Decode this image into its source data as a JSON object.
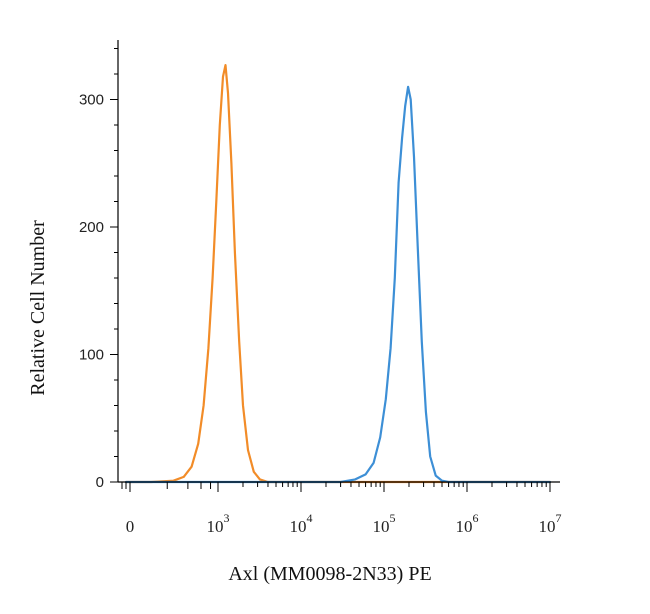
{
  "chart_data": {
    "type": "line",
    "xlabel": "Axl (MM0098-2N33) PE",
    "ylabel": "Relative Cell Number",
    "x_scale": "biexponential",
    "x_ticks": [
      {
        "value": 0,
        "label": "0",
        "exp": ""
      },
      {
        "value": 1000,
        "label": "10",
        "exp": "3"
      },
      {
        "value": 10000,
        "label": "10",
        "exp": "4"
      },
      {
        "value": 100000,
        "label": "10",
        "exp": "5"
      },
      {
        "value": 1000000,
        "label": "10",
        "exp": "6"
      },
      {
        "value": 10000000,
        "label": "10",
        "exp": "7"
      }
    ],
    "y_ticks": [
      0,
      100,
      200,
      300
    ],
    "ylim": [
      0,
      340
    ],
    "grid": false,
    "series": [
      {
        "color": "#f28c28",
        "points": [
          [
            -200,
            0
          ],
          [
            100,
            0
          ],
          [
            250,
            1
          ],
          [
            350,
            4
          ],
          [
            450,
            12
          ],
          [
            550,
            30
          ],
          [
            650,
            60
          ],
          [
            750,
            105
          ],
          [
            850,
            160
          ],
          [
            950,
            220
          ],
          [
            1050,
            280
          ],
          [
            1150,
            318
          ],
          [
            1230,
            327
          ],
          [
            1320,
            305
          ],
          [
            1450,
            250
          ],
          [
            1600,
            180
          ],
          [
            1800,
            110
          ],
          [
            2000,
            60
          ],
          [
            2300,
            25
          ],
          [
            2700,
            8
          ],
          [
            3200,
            2
          ],
          [
            4000,
            0
          ],
          [
            20000,
            0
          ],
          [
            100000,
            0
          ],
          [
            1000000,
            0
          ],
          [
            10000000,
            0
          ]
        ]
      },
      {
        "color": "#3d8fd6",
        "points": [
          [
            -200,
            0
          ],
          [
            1000,
            0
          ],
          [
            10000,
            0
          ],
          [
            30000,
            0
          ],
          [
            45000,
            2
          ],
          [
            60000,
            6
          ],
          [
            75000,
            15
          ],
          [
            90000,
            35
          ],
          [
            105000,
            65
          ],
          [
            120000,
            105
          ],
          [
            135000,
            160
          ],
          [
            150000,
            235
          ],
          [
            165000,
            270
          ],
          [
            180000,
            295
          ],
          [
            195000,
            310
          ],
          [
            210000,
            300
          ],
          [
            230000,
            255
          ],
          [
            255000,
            185
          ],
          [
            285000,
            110
          ],
          [
            320000,
            55
          ],
          [
            360000,
            20
          ],
          [
            420000,
            5
          ],
          [
            500000,
            1
          ],
          [
            600000,
            0
          ],
          [
            10000000,
            0
          ]
        ]
      }
    ]
  }
}
